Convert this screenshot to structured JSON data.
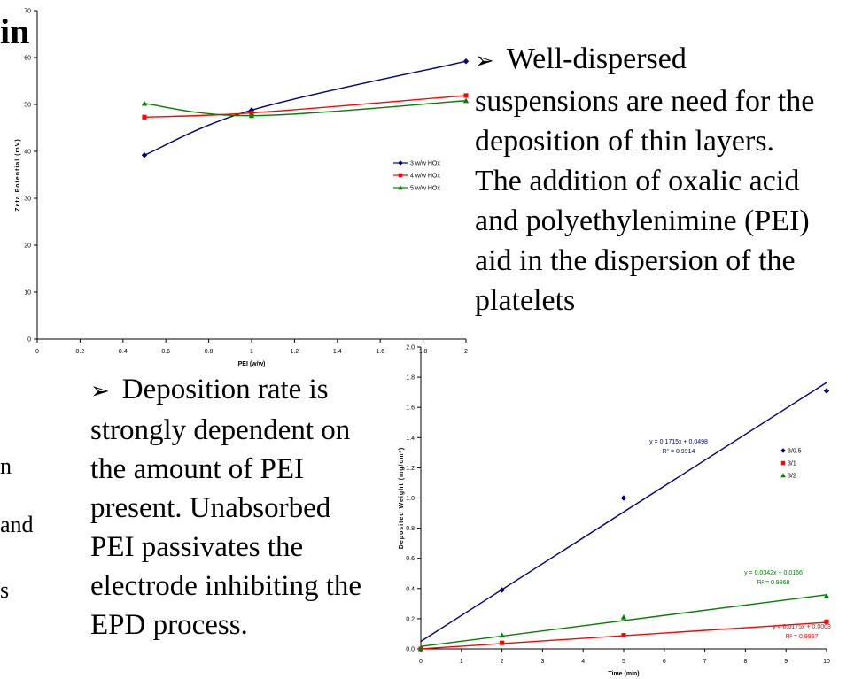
{
  "slide": {
    "title_fragment": "in",
    "left_fragments": [
      "n",
      "and",
      "s"
    ],
    "bullet1": {
      "lines": [
        "Well-dispersed",
        "suspensions are need for the",
        "deposition of thin layers.",
        "The addition of oxalic acid",
        "and polyethylenimine (PEI)",
        "aid in the dispersion of the",
        "platelets"
      ]
    },
    "bullet2": {
      "lines": [
        "Deposition rate is",
        "strongly dependent on",
        "the amount of PEI",
        "present.  Unabsorbed",
        "PEI passivates the",
        "electrode inhibiting the",
        "EPD process."
      ]
    }
  },
  "chart_data": [
    {
      "type": "line",
      "title": "",
      "xlabel": "PEI (w/w)",
      "ylabel": "Zeta Potential (mV)",
      "xlim": [
        0,
        2
      ],
      "ylim": [
        0,
        70
      ],
      "xticks": [
        "0",
        "0.2",
        "0.4",
        "0.6",
        "0.8",
        "1",
        "1.2",
        "1.4",
        "1.6",
        "1.8",
        "2"
      ],
      "yticks": [
        "0",
        "10",
        "20",
        "30",
        "40",
        "50",
        "60",
        "70"
      ],
      "grid": false,
      "legend_position": "right",
      "series": [
        {
          "name": "3 w/w HOx",
          "color": "#000080",
          "marker": "diamond",
          "x": [
            0.5,
            1,
            2
          ],
          "y": [
            39.2,
            48.8,
            59.2
          ]
        },
        {
          "name": "4 w/w HOx",
          "color": "#ff0000",
          "marker": "square",
          "x": [
            0.5,
            1,
            2
          ],
          "y": [
            47.3,
            48.2,
            51.9
          ]
        },
        {
          "name": "5 w/w HOx",
          "color": "#008000",
          "marker": "triangle",
          "x": [
            0.5,
            1,
            2
          ],
          "y": [
            50.2,
            47.6,
            50.8
          ]
        }
      ]
    },
    {
      "type": "scatter",
      "title": "",
      "xlabel": "Time (min)",
      "ylabel": "Deposited Weight (mg/cm²)",
      "xlim": [
        0,
        10
      ],
      "ylim": [
        0,
        2.0
      ],
      "xticks": [
        "0",
        "1",
        "2",
        "3",
        "4",
        "5",
        "6",
        "7",
        "8",
        "9",
        "10"
      ],
      "yticks": [
        "0.0",
        "0.2",
        "0.4",
        "0.6",
        "0.8",
        "1.0",
        "1.2",
        "1.4",
        "1.6",
        "1.8",
        "2.0"
      ],
      "grid": false,
      "legend_position": "top-right",
      "series": [
        {
          "name": "3/0.5",
          "color": "#000080",
          "marker": "diamond",
          "x": [
            0,
            2,
            5,
            10
          ],
          "y": [
            0,
            0.39,
            1.0,
            1.71
          ],
          "fit": {
            "slope": 0.1715,
            "intercept": 0.0498,
            "equation": "y = 0.1715x + 0.0498",
            "r2": "R² = 0.9914"
          }
        },
        {
          "name": "3/1",
          "color": "#ff0000",
          "marker": "square",
          "x": [
            0,
            2,
            5,
            10
          ],
          "y": [
            0,
            0.04,
            0.09,
            0.18
          ],
          "fit": {
            "slope": 0.0175,
            "intercept": 0.0003,
            "equation": "y = 0.0175x + 0.0003",
            "r2": "R² = 0.9957"
          }
        },
        {
          "name": "3/2",
          "color": "#008000",
          "marker": "triangle",
          "x": [
            0,
            2,
            5,
            10
          ],
          "y": [
            0,
            0.09,
            0.21,
            0.35
          ],
          "fit": {
            "slope": 0.0342,
            "intercept": 0.0166,
            "equation": "y = 0.0342x + 0.0166",
            "r2": "R² = 0.9868"
          }
        }
      ]
    }
  ]
}
